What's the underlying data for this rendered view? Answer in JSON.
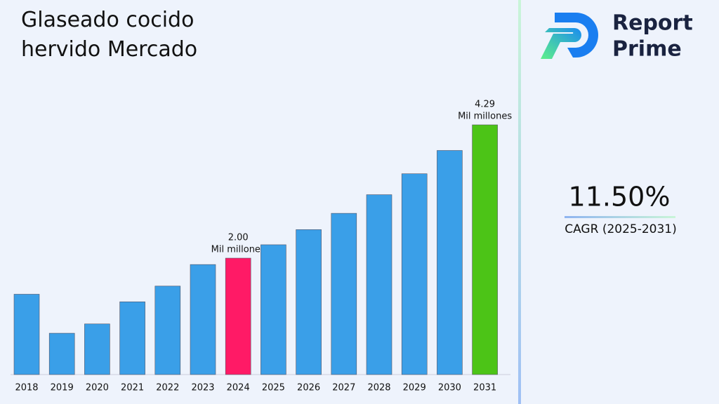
{
  "chart_data": {
    "type": "bar",
    "title": "Glaseado cocido hervido Mercado",
    "categories": [
      "2018",
      "2019",
      "2020",
      "2021",
      "2022",
      "2023",
      "2024",
      "2025",
      "2026",
      "2027",
      "2028",
      "2029",
      "2030",
      "2031"
    ],
    "values": [
      1.38,
      0.71,
      0.87,
      1.25,
      1.52,
      1.89,
      2.0,
      2.23,
      2.49,
      2.77,
      3.09,
      3.45,
      3.85,
      4.29
    ],
    "value_labels": [
      null,
      null,
      null,
      null,
      null,
      null,
      "2.00",
      null,
      null,
      null,
      null,
      null,
      null,
      "4.29"
    ],
    "value_unit": "Mil millones",
    "colors": [
      "#3a9fe8",
      "#3a9fe8",
      "#3a9fe8",
      "#3a9fe8",
      "#3a9fe8",
      "#3a9fe8",
      "#ff1a66",
      "#3a9fe8",
      "#3a9fe8",
      "#3a9fe8",
      "#3a9fe8",
      "#3a9fe8",
      "#3a9fe8",
      "#4cc417"
    ]
  },
  "cagr": {
    "value": "11.50%",
    "label": "CAGR (2025-2031)"
  },
  "logo": {
    "line1": "Report",
    "line2": "Prime"
  }
}
